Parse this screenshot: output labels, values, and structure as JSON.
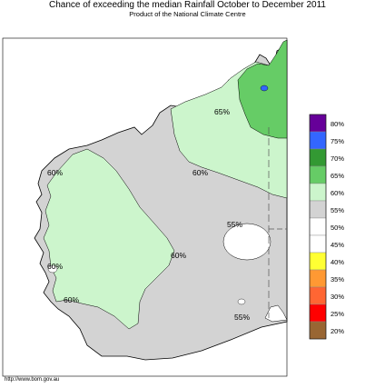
{
  "header": {
    "title": "Chance of exceeding the median Rainfall October to December 2011",
    "subtitle": "Product of the National Climate Centre"
  },
  "footer": {
    "credit": "http://www.bom.gov.au"
  },
  "colors": {
    "ocean": "#ffffff",
    "land_55": "#d3d3d3",
    "land_60": "#ccf5cc",
    "land_65": "#66cc66",
    "land_70": "#339933",
    "border": "#000000",
    "state_line": "#555555"
  },
  "map_labels": [
    {
      "text": "65%"
    },
    {
      "text": "60%"
    },
    {
      "text": "60%"
    },
    {
      "text": "55%"
    },
    {
      "text": "60%"
    },
    {
      "text": "60%"
    },
    {
      "text": "60%"
    },
    {
      "text": "55%"
    }
  ],
  "legend": {
    "items": [
      {
        "label": "80%",
        "color": "#660099"
      },
      {
        "label": "75%",
        "color": "#3366ff"
      },
      {
        "label": "70%",
        "color": "#339933"
      },
      {
        "label": "65%",
        "color": "#66cc66"
      },
      {
        "label": "60%",
        "color": "#ccf5cc"
      },
      {
        "label": "55%",
        "color": "#d3d3d3"
      },
      {
        "label": "50%",
        "color": "#ffffff"
      },
      {
        "label": "45%",
        "color": "#ffffff"
      },
      {
        "label": "40%",
        "color": "#ffff33"
      },
      {
        "label": "35%",
        "color": "#ff9933"
      },
      {
        "label": "30%",
        "color": "#ff6633"
      },
      {
        "label": "25%",
        "color": "#ff0000"
      },
      {
        "label": "20%",
        "color": "#996633"
      }
    ]
  }
}
